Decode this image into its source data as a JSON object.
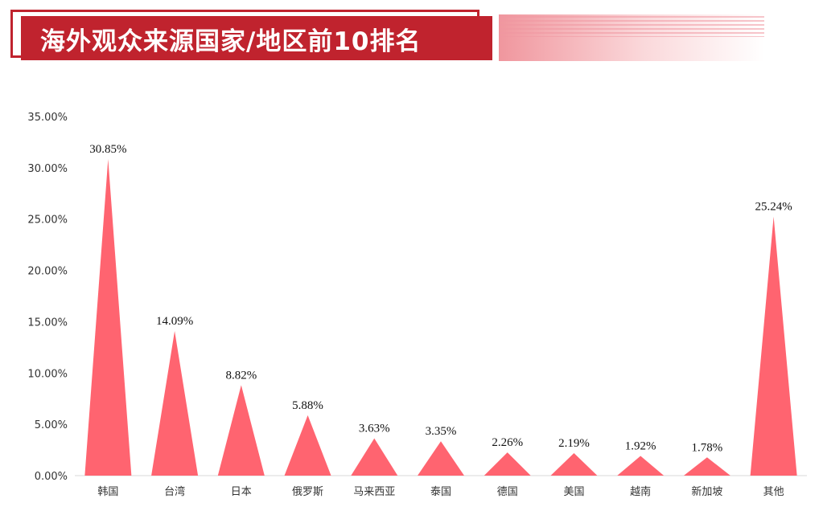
{
  "title": "海外观众来源国家/地区前10排名",
  "colors": {
    "accent": "#c0232e",
    "mark": "#ff6470",
    "axis": "#d9d9d9",
    "text": "#333333"
  },
  "chart_data": {
    "type": "bar",
    "mark_shape": "triangle",
    "categories": [
      "韩国",
      "台湾",
      "日本",
      "俄罗斯",
      "马来西亚",
      "泰国",
      "德国",
      "美国",
      "越南",
      "新加坡",
      "其他"
    ],
    "values": [
      30.85,
      14.09,
      8.82,
      5.88,
      3.63,
      3.35,
      2.26,
      2.19,
      1.92,
      1.78,
      25.24
    ],
    "data_labels": [
      "30.85%",
      "14.09%",
      "8.82%",
      "5.88%",
      "3.63%",
      "3.35%",
      "2.26%",
      "2.19%",
      "1.92%",
      "1.78%",
      "25.24%"
    ],
    "yticks": [
      "0.00%",
      "5.00%",
      "10.00%",
      "15.00%",
      "20.00%",
      "25.00%",
      "30.00%",
      "35.00%"
    ],
    "ylim": [
      0,
      35
    ],
    "title": "",
    "xlabel": "",
    "ylabel": "",
    "grid": false,
    "legend": "none"
  }
}
